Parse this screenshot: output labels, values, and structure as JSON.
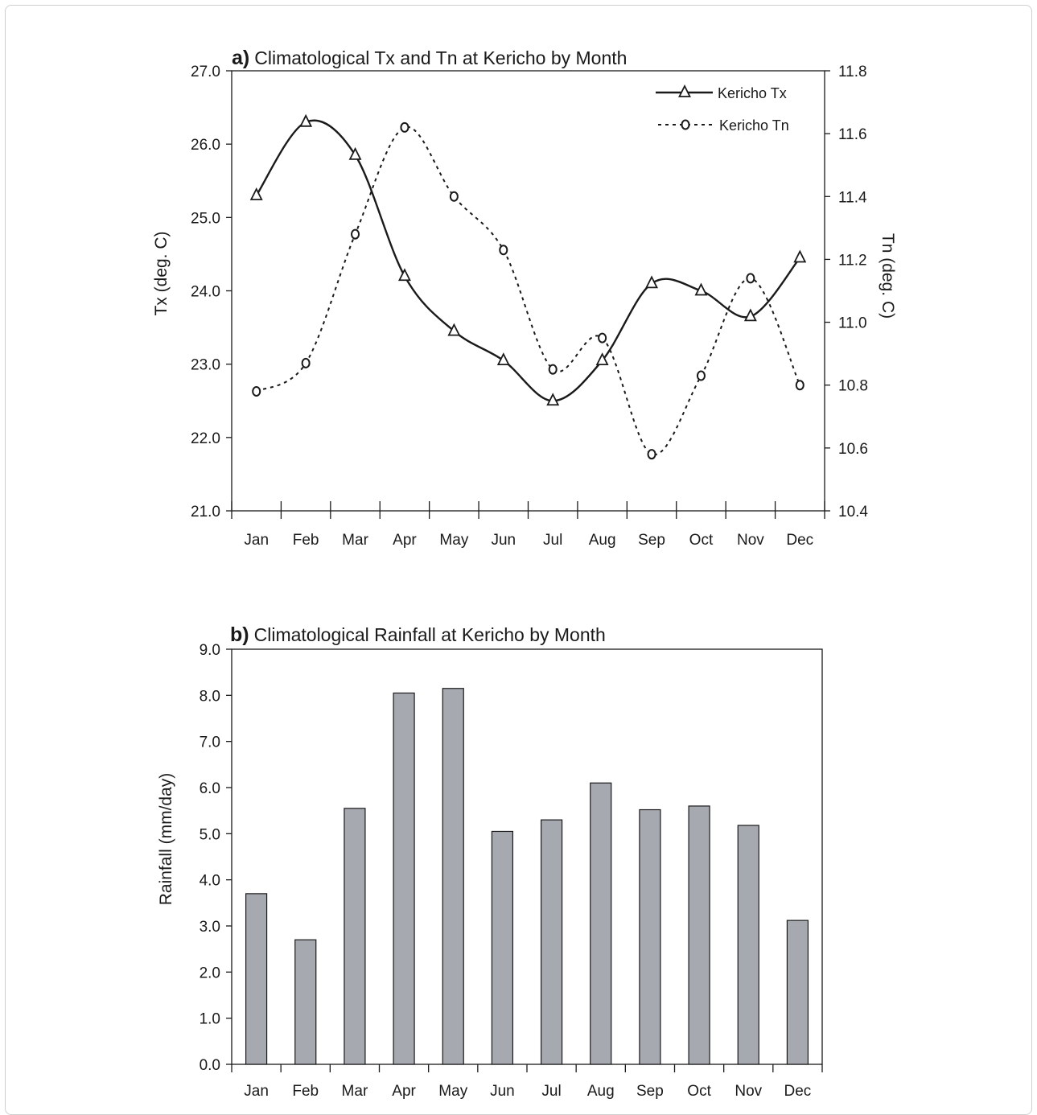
{
  "chart_data": [
    {
      "type": "line",
      "panel_letter": "a)",
      "title": "Climatological Tx and Tn at Kericho by Month",
      "categories": [
        "Jan",
        "Feb",
        "Mar",
        "Apr",
        "May",
        "Jun",
        "Jul",
        "Aug",
        "Sep",
        "Oct",
        "Nov",
        "Dec"
      ],
      "ylabel": "Tx (deg. C)",
      "y2label": "Tn (deg. C)",
      "ylim": [
        21.0,
        27.0
      ],
      "y2lim": [
        10.4,
        11.8
      ],
      "yticks": [
        "21.0",
        "22.0",
        "23.0",
        "24.0",
        "25.0",
        "26.0",
        "27.0"
      ],
      "y2ticks": [
        "10.4",
        "10.6",
        "10.8",
        "11.0",
        "11.2",
        "11.4",
        "11.6",
        "11.8"
      ],
      "legend_position": "top-right",
      "series": [
        {
          "name": "Kericho Tx",
          "axis": "left",
          "style": "solid",
          "marker": "triangle",
          "color": "#1a1a1a",
          "values": [
            25.3,
            26.3,
            25.85,
            24.2,
            23.45,
            23.05,
            22.5,
            23.05,
            24.1,
            24.0,
            23.65,
            24.45
          ]
        },
        {
          "name": "Kericho Tn",
          "axis": "right",
          "style": "dotted",
          "marker": "circle",
          "color": "#1a1a1a",
          "values": [
            10.78,
            10.87,
            11.28,
            11.62,
            11.4,
            11.23,
            10.85,
            10.95,
            10.58,
            10.83,
            11.14,
            10.8
          ]
        }
      ]
    },
    {
      "type": "bar",
      "panel_letter": "b)",
      "title": "Climatological Rainfall at Kericho by Month",
      "categories": [
        "Jan",
        "Feb",
        "Mar",
        "Apr",
        "May",
        "Jun",
        "Jul",
        "Aug",
        "Sep",
        "Oct",
        "Nov",
        "Dec"
      ],
      "ylabel": "Rainfall (mm/day)",
      "ylim": [
        0.0,
        9.0
      ],
      "yticks": [
        "0.0",
        "1.0",
        "2.0",
        "3.0",
        "4.0",
        "5.0",
        "6.0",
        "7.0",
        "8.0",
        "9.0"
      ],
      "bar_color": "#a7a9b1",
      "values": [
        3.7,
        2.7,
        5.55,
        8.05,
        8.15,
        5.05,
        5.3,
        6.1,
        5.52,
        5.6,
        5.18,
        3.12
      ]
    }
  ]
}
